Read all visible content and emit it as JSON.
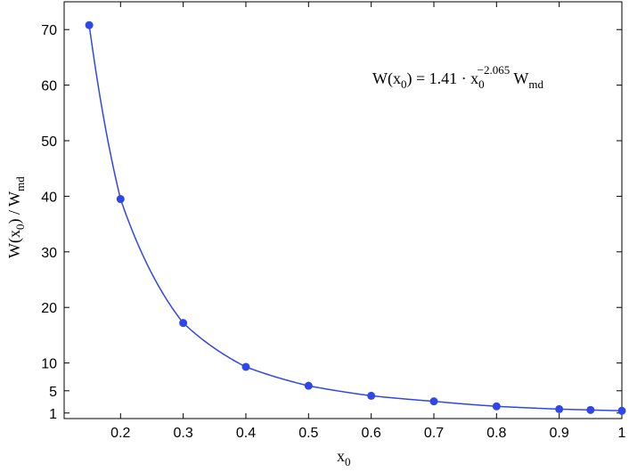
{
  "chart_data": {
    "type": "scatter",
    "title": "",
    "xlabel": "x",
    "xlabel_sub": "0",
    "ylabel": {
      "w": "W(x",
      "sub0": "0",
      "mid": ") / W",
      "sub_md": "md"
    },
    "xlim": [
      0.11,
      1.0
    ],
    "ylim": [
      0,
      75
    ],
    "xticks": [
      0.2,
      0.3,
      0.4,
      0.5,
      0.6,
      0.7,
      0.8,
      0.9,
      1
    ],
    "xtick_labels": [
      "0.2",
      "0.3",
      "0.4",
      "0.5",
      "0.6",
      "0.7",
      "0.8",
      "0.9",
      "1"
    ],
    "yticks": [
      1,
      5,
      10,
      20,
      30,
      40,
      50,
      60,
      70
    ],
    "ytick_labels": [
      "1",
      "5",
      "10",
      "20",
      "30",
      "40",
      "50",
      "60",
      "70"
    ],
    "grid": false,
    "color": "#2f47e8",
    "points": {
      "x": [
        0.15,
        0.2,
        0.3,
        0.4,
        0.5,
        0.6,
        0.7,
        0.8,
        0.9,
        0.95,
        1.0
      ],
      "y": [
        70.8,
        39.5,
        17.2,
        9.3,
        5.9,
        4.1,
        3.1,
        2.2,
        1.7,
        1.55,
        1.4
      ]
    },
    "fit": {
      "type": "power",
      "coefficient": 1.41,
      "exponent": -2.065
    },
    "annotation": {
      "lhs": "W(x",
      "lhs_sub": "0",
      "rhs": ") = 1.41 · x",
      "x_sub": "0",
      "exp": "−2.065",
      "w": " W",
      "w_sub": "md"
    }
  }
}
